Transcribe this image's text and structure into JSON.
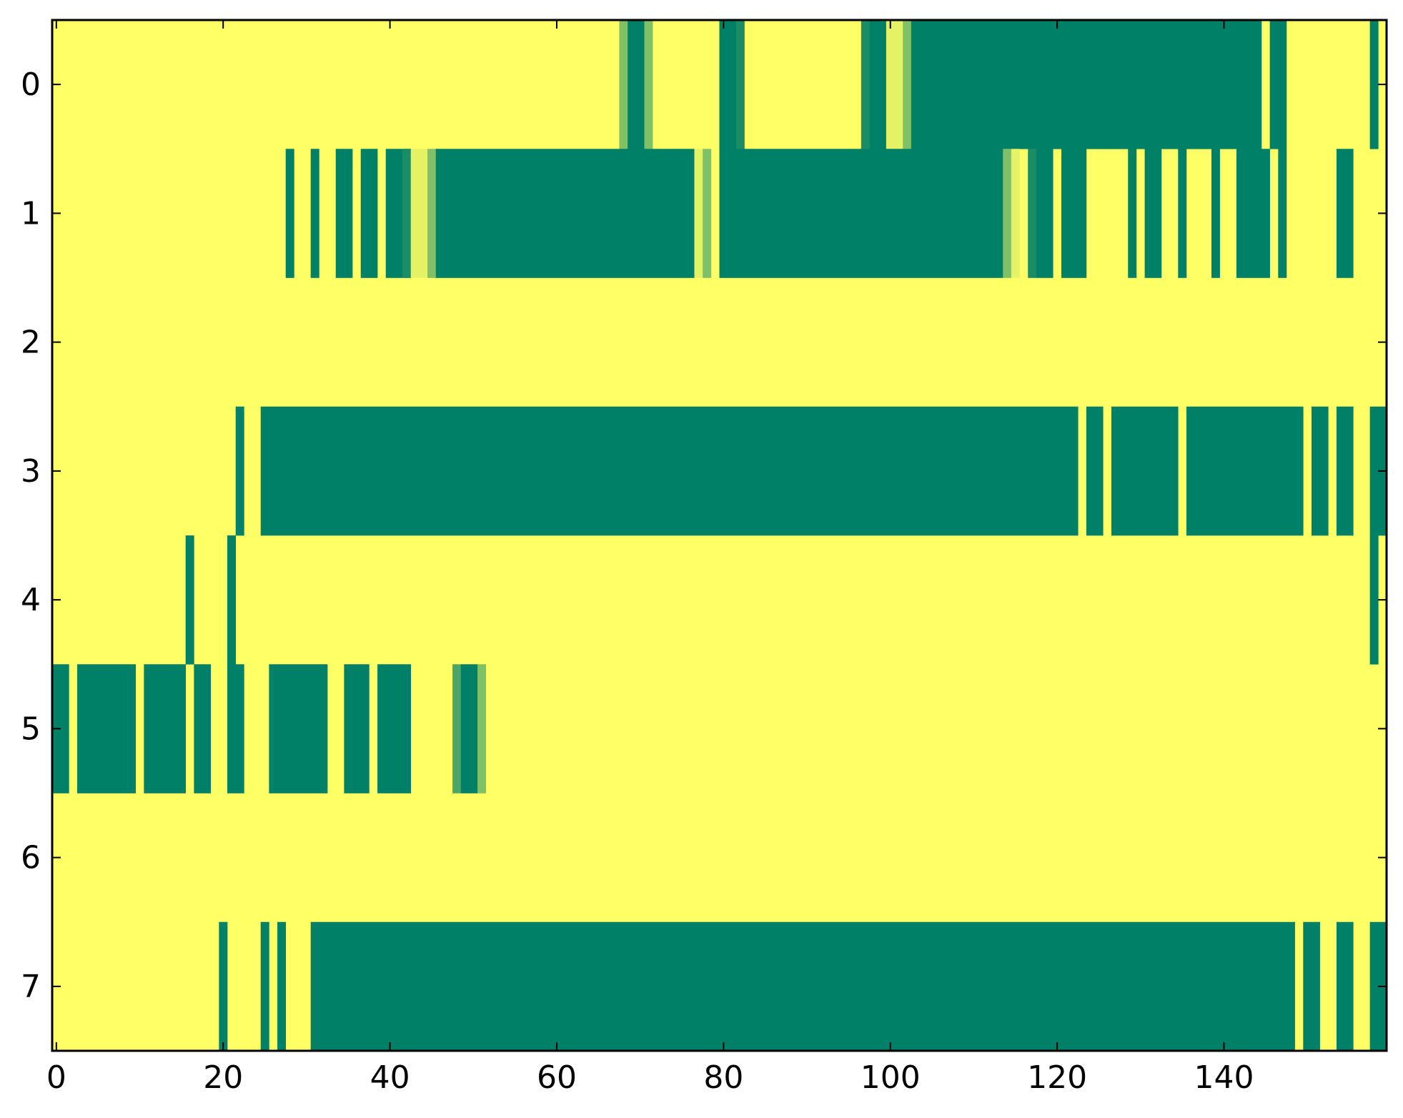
{
  "chart_data": {
    "type": "heatmap",
    "colormap": "summer",
    "colors": {
      "low": "#008066",
      "high": "#ffff66",
      "mid_light": "#99cc66",
      "mid_dark": "#1a8c66"
    },
    "title": "",
    "xlabel": "",
    "ylabel": "",
    "n_cols": 160,
    "n_rows": 8,
    "xlim": [
      -0.5,
      159.5
    ],
    "ylim": [
      7.5,
      -0.5
    ],
    "x_ticks": [
      0,
      20,
      40,
      60,
      80,
      100,
      120,
      140
    ],
    "x_tick_labels": [
      "0",
      "20",
      "40",
      "60",
      "80",
      "100",
      "120",
      "140"
    ],
    "y_ticks": [
      0,
      1,
      2,
      3,
      4,
      5,
      6,
      7
    ],
    "y_tick_labels": [
      "0",
      "1",
      "2",
      "3",
      "4",
      "5",
      "6",
      "7"
    ],
    "value_encoding": "cell value 0 (green) to 1 (yellow); columns not listed are 1",
    "rows": [
      {
        "row": 0,
        "cells": [
          [
            68,
            68,
            0.5
          ],
          [
            69,
            70,
            0
          ],
          [
            71,
            71,
            0.5
          ],
          [
            80,
            81,
            0
          ],
          [
            82,
            82,
            0.1
          ],
          [
            97,
            97,
            0.1
          ],
          [
            98,
            99,
            0
          ],
          [
            100,
            101,
            0.9
          ],
          [
            102,
            102,
            0.5
          ],
          [
            103,
            144,
            0
          ],
          [
            146,
            147,
            0
          ],
          [
            158,
            158,
            0
          ]
        ]
      },
      {
        "row": 1,
        "cells": [
          [
            28,
            28,
            0
          ],
          [
            31,
            31,
            0
          ],
          [
            34,
            35,
            0
          ],
          [
            37,
            38,
            0
          ],
          [
            40,
            42,
            0
          ],
          [
            42,
            42,
            0.1
          ],
          [
            43,
            44,
            0.9
          ],
          [
            45,
            45,
            0.5
          ],
          [
            46,
            76,
            0
          ],
          [
            77,
            77,
            0.9
          ],
          [
            78,
            78,
            0.5
          ],
          [
            80,
            113,
            0
          ],
          [
            114,
            114,
            0.5
          ],
          [
            115,
            115,
            0.9
          ],
          [
            117,
            117,
            0.1
          ],
          [
            118,
            119,
            0
          ],
          [
            121,
            123,
            0
          ],
          [
            129,
            129,
            0
          ],
          [
            131,
            132,
            0
          ],
          [
            135,
            135,
            0
          ],
          [
            139,
            139,
            0
          ],
          [
            142,
            145,
            0
          ],
          [
            147,
            147,
            0
          ],
          [
            154,
            155,
            0
          ]
        ]
      },
      {
        "row": 2,
        "cells": []
      },
      {
        "row": 3,
        "cells": [
          [
            22,
            22,
            0
          ],
          [
            25,
            122,
            0
          ],
          [
            124,
            125,
            0
          ],
          [
            127,
            134,
            0
          ],
          [
            136,
            149,
            0
          ],
          [
            151,
            152,
            0
          ],
          [
            154,
            155,
            0
          ],
          [
            158,
            159,
            0
          ]
        ]
      },
      {
        "row": 4,
        "cells": [
          [
            16,
            16,
            0
          ],
          [
            21,
            21,
            0
          ],
          [
            158,
            158,
            0
          ]
        ]
      },
      {
        "row": 5,
        "cells": [
          [
            0,
            1,
            0
          ],
          [
            3,
            9,
            0
          ],
          [
            11,
            15,
            0
          ],
          [
            17,
            18,
            0
          ],
          [
            21,
            22,
            0
          ],
          [
            26,
            32,
            0
          ],
          [
            35,
            37,
            0
          ],
          [
            39,
            42,
            0
          ],
          [
            48,
            48,
            0.3
          ],
          [
            49,
            50,
            0
          ],
          [
            51,
            51,
            0.5
          ]
        ]
      },
      {
        "row": 6,
        "cells": []
      },
      {
        "row": 7,
        "cells": [
          [
            20,
            20,
            0
          ],
          [
            25,
            25,
            0
          ],
          [
            27,
            27,
            0
          ],
          [
            31,
            148,
            0
          ],
          [
            150,
            151,
            0
          ],
          [
            154,
            155,
            0
          ],
          [
            158,
            159,
            0
          ]
        ]
      }
    ]
  }
}
